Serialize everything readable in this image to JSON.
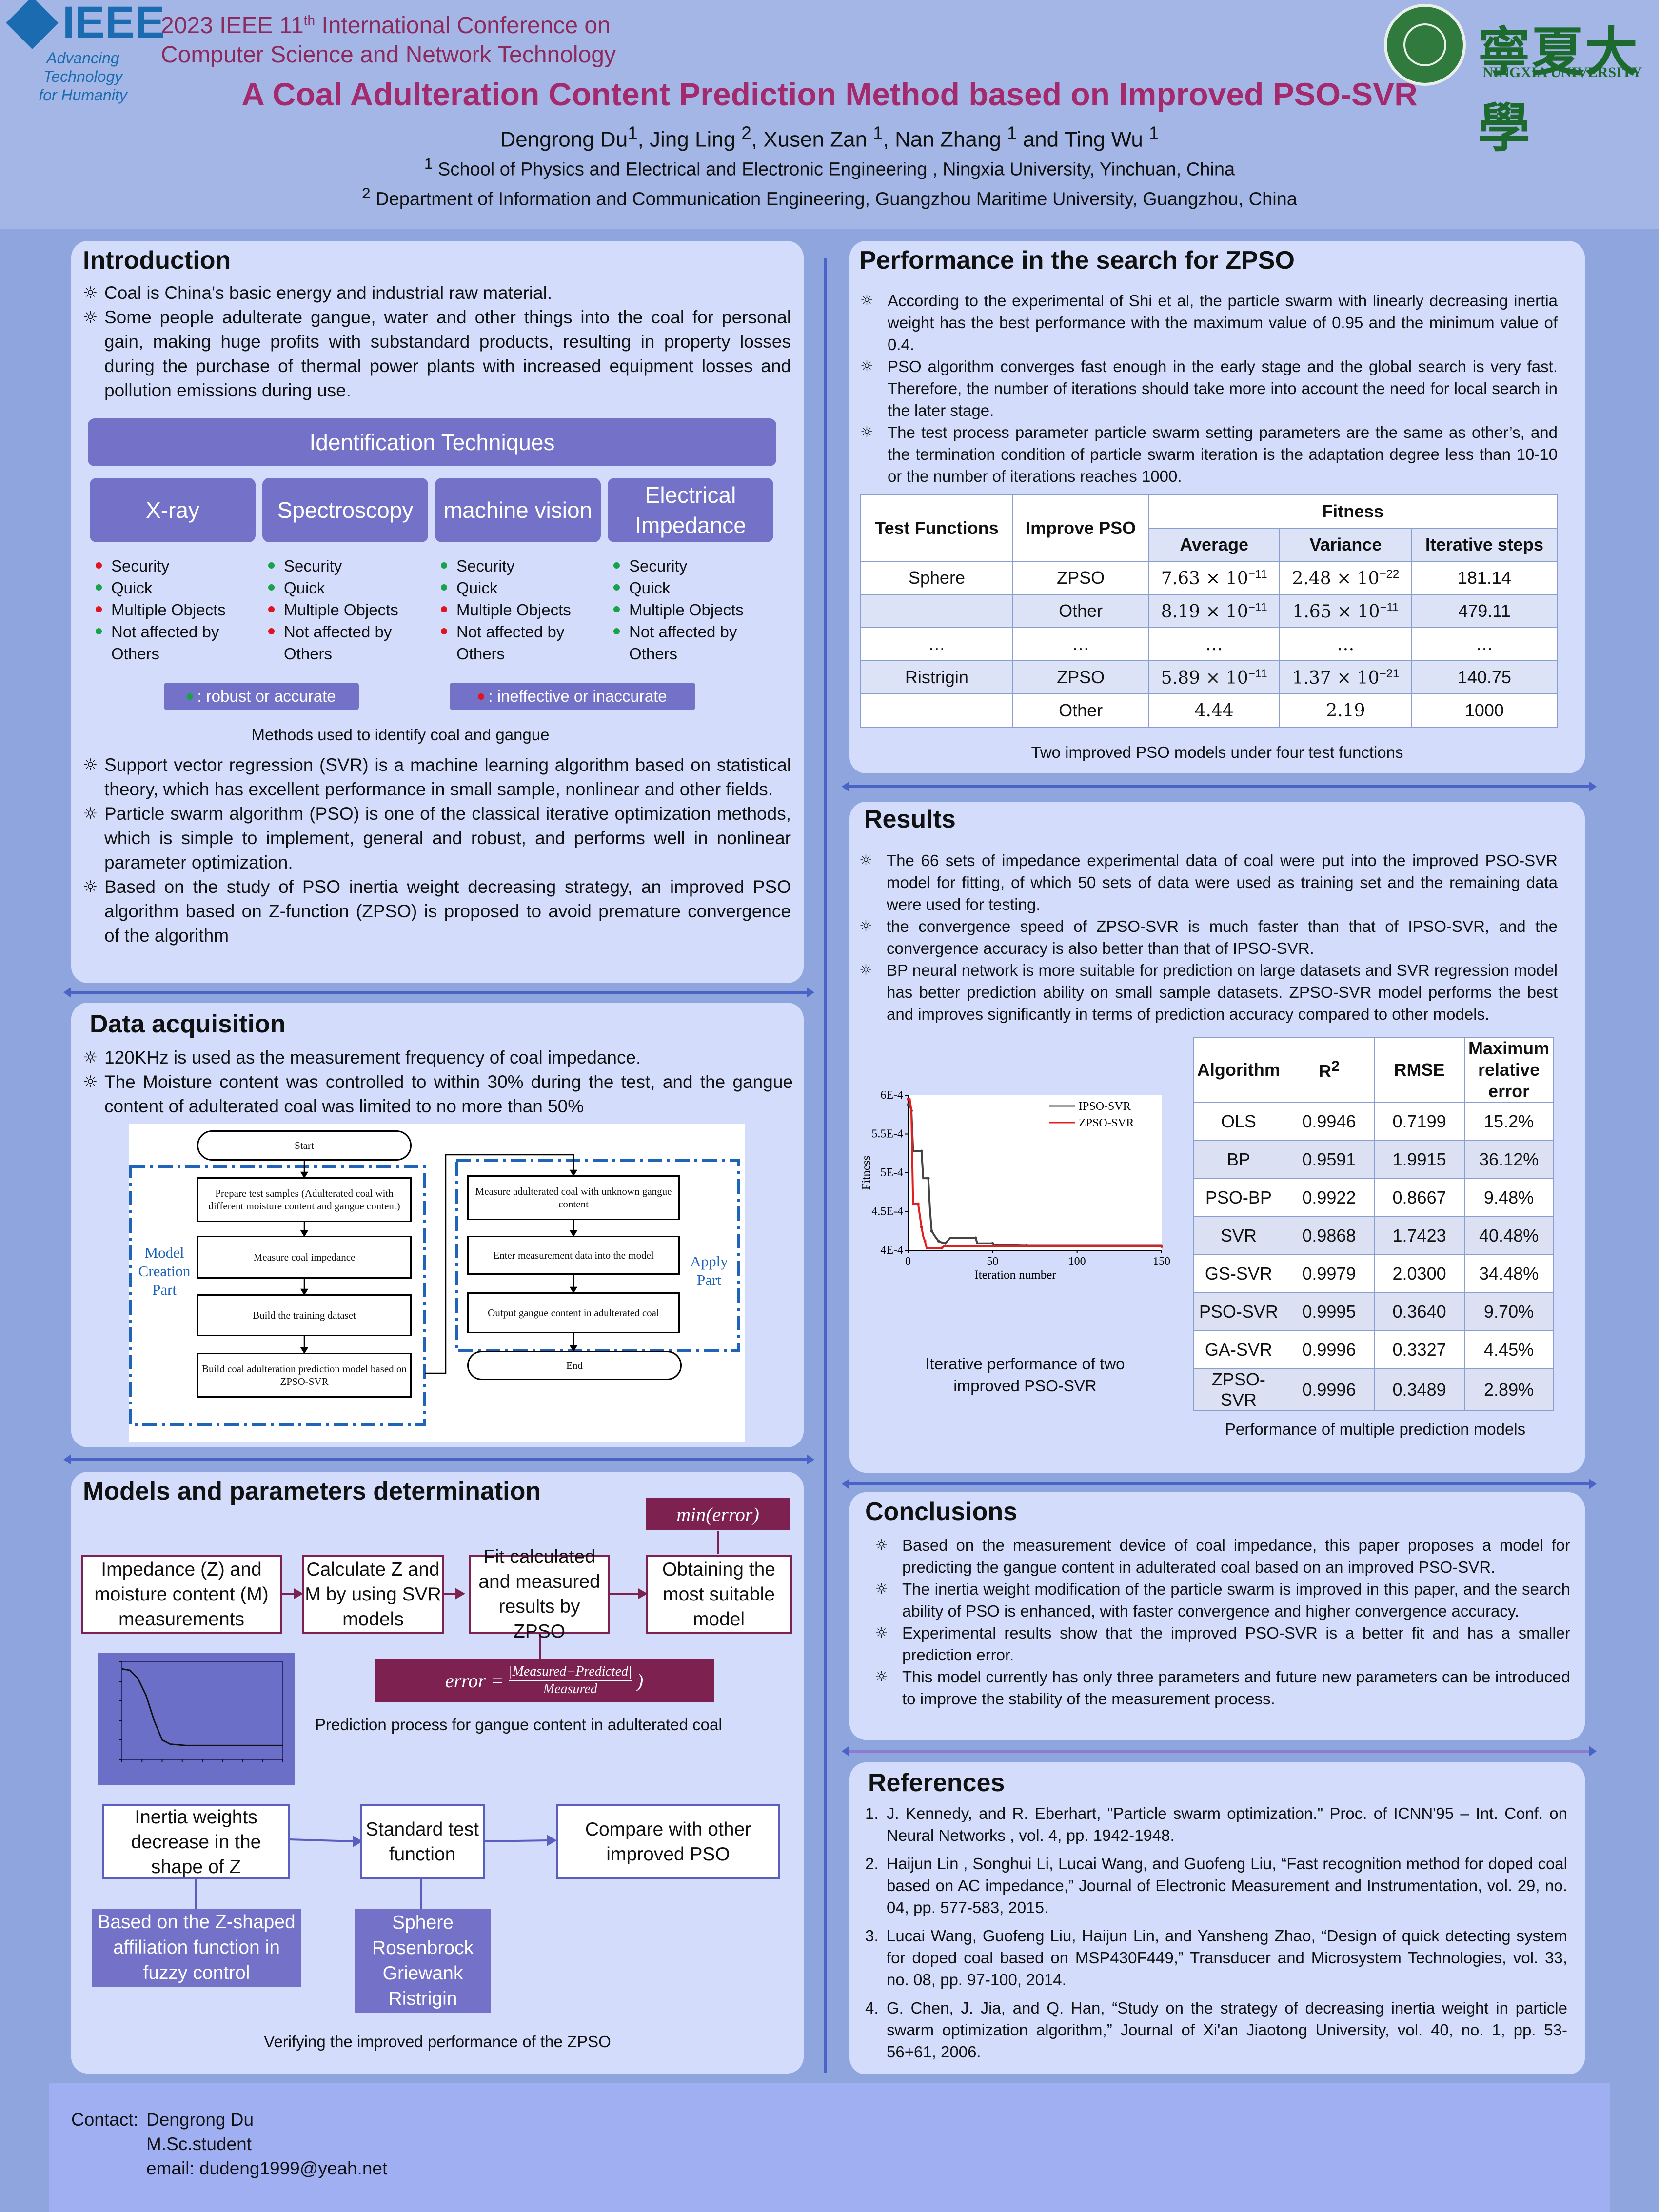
{
  "header": {
    "ieee_word": "IEEE",
    "ieee_tagline": [
      "Advancing Technology",
      "for Humanity"
    ],
    "conference_line1_pre": "2023 IEEE 11",
    "conference_line1_sup": "th",
    "conference_line1_post": "  International Conference on",
    "conference_line2": "Computer Science and Network Technology",
    "title": "A Coal Adulteration Content Prediction Method based on Improved PSO-SVR",
    "authors": [
      {
        "name": "Dengrong Du",
        "sup": "1"
      },
      {
        "name": "Jing Ling ",
        "sup": "2"
      },
      {
        "name": "Xusen Zan ",
        "sup": "1"
      },
      {
        "name": "Nan Zhang ",
        "sup": "1"
      },
      {
        "name": "Ting Wu ",
        "sup": "1"
      }
    ],
    "affiliation1_sup": "1",
    "affiliation1": " School of Physics and Electrical and Electronic Engineering , Ningxia University, Yinchuan, China",
    "affiliation2_sup": "2",
    "affiliation2": " Department of Information and Communication Engineering, Guangzhou Maritime University, Guangzhou, China",
    "university_cn": "寧夏大學",
    "university_en": "NINGXIA UNIVERSITY"
  },
  "introduction": {
    "title": "Introduction",
    "bullets_top": [
      "Coal is China's basic energy and industrial raw material.",
      "Some people adulterate gangue, water and other things into the coal for personal gain, making huge profits with substandard products, resulting in property losses during the purchase of thermal power plants with increased equipment losses and pollution emissions during use."
    ],
    "techniques_header": "Identification Techniques",
    "techniques": [
      {
        "name": "X-ray",
        "items": [
          {
            "text": "Security",
            "ok": false
          },
          {
            "text": "Quick",
            "ok": true
          },
          {
            "text": "Multiple Objects",
            "ok": false
          },
          {
            "text": "Not affected by Others",
            "ok": true
          }
        ]
      },
      {
        "name": "Spectroscopy",
        "items": [
          {
            "text": "Security",
            "ok": true
          },
          {
            "text": "Quick",
            "ok": true
          },
          {
            "text": "Multiple Objects",
            "ok": false
          },
          {
            "text": "Not affected by Others",
            "ok": false
          }
        ]
      },
      {
        "name": "machine vision",
        "items": [
          {
            "text": "Security",
            "ok": true
          },
          {
            "text": "Quick",
            "ok": true
          },
          {
            "text": "Multiple Objects",
            "ok": false
          },
          {
            "text": "Not affected by Others",
            "ok": false
          }
        ]
      },
      {
        "name": "Electrical Impedance",
        "items": [
          {
            "text": "Security",
            "ok": true
          },
          {
            "text": "Quick",
            "ok": true
          },
          {
            "text": "Multiple Objects",
            "ok": true
          },
          {
            "text": "Not affected by Others",
            "ok": true
          }
        ]
      }
    ],
    "legend_ok": ":  robust or accurate",
    "legend_bad": ": ineffective or inaccurate",
    "figure_caption": "Methods used to identify coal and gangue",
    "bullets_bottom": [
      "Support vector regression (SVR) is a machine learning algorithm based on statistical theory, which has excellent performance in small sample, nonlinear and other fields.",
      "Particle swarm algorithm (PSO) is one of the classical iterative optimization methods, which is simple to implement, general and robust, and performs well in nonlinear parameter optimization.",
      "Based on the study of PSO inertia weight decreasing strategy, an improved PSO algorithm based on Z-function (ZPSO) is proposed to avoid premature convergence of the algorithm"
    ]
  },
  "data_acquisition": {
    "title": "Data acquisition",
    "bullets": [
      "120KHz is used as the measurement frequency of coal impedance.",
      "The Moisture content was controlled to within 30% during the test, and the gangue content of adulterated coal was limited to no more than 50%"
    ],
    "flow": {
      "start": "Start",
      "left_steps": [
        "Prepare test samples (Adulterated coal with different moisture content and gangue content)",
        "Measure coal impedance",
        "Build the training dataset",
        "Build coal adulteration prediction model based on ZPSO-SVR"
      ],
      "right_steps": [
        "Measure adulterated coal with unknown gangue content",
        "Enter measurement data into the model",
        "Output gangue content in adulterated coal"
      ],
      "end": "End",
      "left_label": "Model Creation Part",
      "right_label": "Apply Part"
    }
  },
  "models": {
    "title": "Models and parameters determination",
    "min_error": "min(error)",
    "boxes": [
      "Impedance (Z) and moisture content (M) measurements",
      "Calculate Z and M by using SVR models",
      "Fit calculated and measured results by ZPSO",
      "Obtaining the most suitable model"
    ],
    "error_formula_lhs": "error = ",
    "error_num": "|Measured−Predicted|",
    "error_den": "Measured",
    "error_rparen": ")",
    "caption1": "Prediction process for gangue content in adulterated coal",
    "bottom_boxes": [
      "Inertia weights decrease in the shape of Z",
      "Standard test function",
      "Compare with other improved PSO"
    ],
    "bottom_fill_boxes": [
      "Based on the Z-shaped affiliation function in fuzzy control",
      "Sphere Rosenbrock Griewank Ristrigin"
    ],
    "caption2": "Verifying the improved performance of the ZPSO"
  },
  "performance": {
    "title": "Performance in the search for ZPSO",
    "bullets": [
      "According to the experimental of Shi et al, the particle swarm with linearly decreasing inertia weight has the best performance with the maximum value of 0.95 and the minimum value of 0.4.",
      "PSO algorithm converges fast enough in the early stage and the global search is very fast. Therefore, the number of iterations should take more into account the need for local search in the later stage.",
      "The test process parameter particle swarm setting parameters are the same as other’s, and the termination condition of particle swarm iteration is the adaptation degree less than 10-10 or the number of iterations reaches 1000."
    ],
    "table": {
      "h_func": "Test Functions",
      "h_improve": "Improve PSO",
      "h_fitness": "Fitness",
      "h_avg": "Average",
      "h_var": "Variance",
      "h_iter": "Iterative steps",
      "rows": [
        {
          "func": "Sphere",
          "pso": "ZPSO",
          "avg": "7.63 × 10",
          "avg_exp": "−11",
          "var": "2.48 × 10",
          "var_exp": "−22",
          "iter": "181.14"
        },
        {
          "func": "",
          "pso": "Other",
          "avg": "8.19 × 10",
          "avg_exp": "−11",
          "var": "1.65 × 10",
          "var_exp": "−11",
          "iter": "479.11"
        },
        {
          "func": "…",
          "pso": "…",
          "avg": "…",
          "avg_exp": "",
          "var": "…",
          "var_exp": "",
          "iter": "…"
        },
        {
          "func": "Ristrigin",
          "pso": "ZPSO",
          "avg": "5.89 × 10",
          "avg_exp": "−11",
          "var": "1.37 × 10",
          "var_exp": "−21",
          "iter": "140.75"
        },
        {
          "func": "",
          "pso": "Other",
          "avg": "4.44",
          "avg_exp": "",
          "var": "2.19",
          "var_exp": "",
          "iter": "1000"
        }
      ]
    },
    "caption": "Two improved PSO models under four test functions"
  },
  "results": {
    "title": "Results",
    "bullets": [
      "The 66 sets of impedance experimental data of coal were put into the improved PSO-SVR model for fitting, of which 50 sets of data were used as training set and the remaining data were used for testing.",
      "the convergence speed of  ZPSO-SVR is much faster than that of IPSO-SVR, and the convergence accuracy is also better than that of IPSO-SVR.",
      "BP neural network is more suitable for prediction on large datasets and SVR regression model has better prediction ability on small sample datasets. ZPSO-SVR model performs the best and improves significantly in terms of prediction accuracy compared to other models."
    ],
    "chart_caption": "Iterative performance of two improved PSO-SVR",
    "table": {
      "headers": [
        "Algorithm",
        "R",
        "RMSE",
        "Maximum relative error"
      ],
      "r_sup": "2",
      "rows": [
        [
          "OLS",
          "0.9946",
          "0.7199",
          "15.2%"
        ],
        [
          "BP",
          "0.9591",
          "1.9915",
          "36.12%"
        ],
        [
          "PSO-BP",
          "0.9922",
          "0.8667",
          "9.48%"
        ],
        [
          "SVR",
          "0.9868",
          "1.7423",
          "40.48%"
        ],
        [
          "GS-SVR",
          "0.9979",
          "2.0300",
          "34.48%"
        ],
        [
          "PSO-SVR",
          "0.9995",
          "0.3640",
          "9.70%"
        ],
        [
          "GA-SVR",
          "0.9996",
          "0.3327",
          "4.45%"
        ],
        [
          "ZPSO-SVR",
          "0.9996",
          "0.3489",
          "2.89%"
        ]
      ]
    },
    "table_caption": "Performance of multiple prediction models"
  },
  "conclusions": {
    "title": "Conclusions",
    "bullets": [
      "Based on the measurement device of coal impedance, this paper proposes a model for predicting the gangue content in adulterated coal based on an improved PSO-SVR.",
      "The inertia weight modification of the particle swarm is improved in this paper, and the search ability of PSO is enhanced, with faster convergence and higher convergence accuracy.",
      "Experimental results show that the improved PSO-SVR is a better fit and has a smaller prediction error.",
      "This model currently has only three parameters and future new parameters can be introduced to improve the stability of the measurement process."
    ]
  },
  "references": {
    "title": "References",
    "items": [
      "J. Kennedy, and R. Eberhart, \"Particle swarm optimization.\" Proc. of ICNN'95 – Int. Conf. on Neural Networks , vol. 4, pp. 1942-1948.",
      "Haijun Lin , Songhui Li,  Lucai Wang, and Guofeng Liu, “Fast recognition method for doped coal based on AC impedance,” Journal of Electronic Measurement and Instrumentation, vol. 29, no. 04, pp. 577-583, 2015.",
      "Lucai Wang,  Guofeng Liu, Haijun Lin, and Yansheng Zhao, “Design of quick detecting system for doped coal based on MSP430F449,” Transducer and Microsystem Technologies, vol. 33, no. 08, pp. 97-100, 2014.",
      "G. Chen, J. Jia, and Q. Han, “Study on the strategy of decreasing inertia weight in particle swarm optimization algorithm,” Journal of Xi'an Jiaotong University, vol. 40, no. 1, pp. 53-56+61, 2006."
    ]
  },
  "contact": {
    "label": "Contact:",
    "name": "Dengrong Du",
    "degree": "M.Sc.student",
    "email": "email: dudeng1999@yeah.net"
  },
  "chart_data": [
    {
      "type": "line",
      "xlabel": "Iteration number",
      "ylabel": "Fitness",
      "xlim": [
        0,
        150
      ],
      "ylim": [
        0.0004,
        0.0006
      ],
      "xticks": [
        "0",
        "50",
        "100",
        "150"
      ],
      "yticks": [
        "4E-4",
        "4.5E-4",
        "5E-4",
        "5.5E-4",
        "6E-4"
      ],
      "legend_position": "top-right",
      "series": [
        {
          "name": "IPSO-SVR",
          "color": "#444444",
          "x": [
            0,
            1,
            2,
            3,
            8,
            9,
            12,
            13,
            14,
            16,
            18,
            20,
            22,
            25,
            40,
            41,
            50,
            51,
            70,
            150
          ],
          "y": [
            0.000588,
            0.000588,
            0.00058,
            0.000528,
            0.000528,
            0.000493,
            0.000493,
            0.000452,
            0.000425,
            0.000418,
            0.000412,
            0.00041,
            0.000409,
            0.000416,
            0.000416,
            0.000409,
            0.000409,
            0.000407,
            0.000406,
            0.000406
          ]
        },
        {
          "name": "ZPSO-SVR",
          "color": "#e02020",
          "x": [
            0,
            1,
            2,
            3,
            6,
            7,
            8,
            9,
            10,
            11,
            20,
            21,
            150
          ],
          "y": [
            0.000595,
            0.000595,
            0.00058,
            0.00046,
            0.00046,
            0.000445,
            0.00043,
            0.000418,
            0.000412,
            0.000403,
            0.000403,
            0.000405,
            0.000405
          ]
        }
      ]
    },
    {
      "type": "line",
      "series": [
        {
          "x": [
            0,
            10,
            20,
            30,
            40,
            50,
            60,
            80,
            100,
            120,
            140,
            160,
            180,
            200
          ],
          "y": [
            0.95,
            0.94,
            0.88,
            0.76,
            0.58,
            0.44,
            0.41,
            0.4,
            0.4,
            0.4,
            0.4,
            0.4,
            0.4,
            0.4
          ]
        }
      ],
      "xlim": [
        0,
        200
      ],
      "ylim": [
        0.3,
        1.0
      ]
    }
  ]
}
